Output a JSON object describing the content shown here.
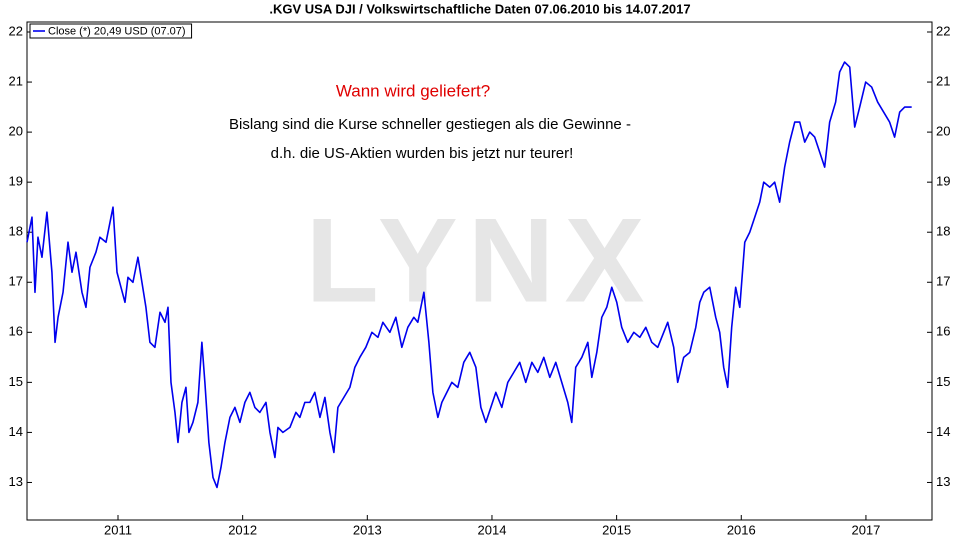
{
  "chart_data": {
    "type": "line",
    "title": ".KGV USA DJI / Volkswirtschaftliche Daten 07.06.2010 bis 14.07.2017",
    "annotations": [
      "Wann wird geliefert?",
      "Bislang sind die Kurse schneller gestiegen als die Gewinne -",
      "d.h. die US-Aktien wurden bis jetzt nur teurer!"
    ],
    "watermark": "LYNX",
    "xlim": [
      2010.27,
      2017.53
    ],
    "xticks": [
      2011,
      2012,
      2013,
      2014,
      2015,
      2016,
      2017
    ],
    "ylim": [
      12.25,
      22.2
    ],
    "yticks": [
      13,
      14,
      15,
      16,
      17,
      18,
      19,
      20,
      21,
      22
    ],
    "grid": false,
    "legend": "top-left",
    "x": [
      2010.27,
      2010.31,
      2010.334,
      2010.358,
      2010.39,
      2010.43,
      2010.47,
      2010.495,
      2010.519,
      2010.559,
      2010.599,
      2010.631,
      2010.663,
      2010.711,
      2010.743,
      2010.775,
      2010.823,
      2010.855,
      2010.904,
      2010.936,
      2010.96,
      2010.992,
      2011.024,
      2011.056,
      2011.08,
      2011.12,
      2011.16,
      2011.192,
      2011.224,
      2011.256,
      2011.296,
      2011.337,
      2011.377,
      2011.401,
      2011.425,
      2011.457,
      2011.481,
      2011.513,
      2011.545,
      2011.569,
      2011.601,
      2011.641,
      2011.673,
      2011.697,
      2011.729,
      2011.762,
      2011.794,
      2011.826,
      2011.858,
      2011.898,
      2011.938,
      2011.978,
      2012.018,
      2012.058,
      2012.098,
      2012.138,
      2012.187,
      2012.219,
      2012.259,
      2012.283,
      2012.323,
      2012.379,
      2012.427,
      2012.459,
      2012.499,
      2012.539,
      2012.579,
      2012.62,
      2012.66,
      2012.7,
      2012.732,
      2012.764,
      2012.812,
      2012.86,
      2012.9,
      2012.94,
      2012.988,
      2013.037,
      2013.085,
      2013.125,
      2013.181,
      2013.229,
      2013.277,
      2013.325,
      2013.373,
      2013.405,
      2013.454,
      2013.494,
      2013.526,
      2013.566,
      2013.598,
      2013.638,
      2013.678,
      2013.726,
      2013.774,
      2013.822,
      2013.871,
      2013.911,
      2013.951,
      2013.991,
      2014.031,
      2014.079,
      2014.127,
      2014.175,
      2014.223,
      2014.271,
      2014.32,
      2014.368,
      2014.416,
      2014.464,
      2014.512,
      2014.56,
      2014.608,
      2014.64,
      2014.672,
      2014.721,
      2014.769,
      2014.801,
      2014.841,
      2014.881,
      2014.921,
      2014.961,
      2015.001,
      2015.041,
      2015.089,
      2015.138,
      2015.186,
      2015.234,
      2015.282,
      2015.33,
      2015.378,
      2015.41,
      2015.458,
      2015.49,
      2015.538,
      2015.587,
      2015.635,
      2015.667,
      2015.699,
      2015.747,
      2015.795,
      2015.827,
      2015.859,
      2015.891,
      2015.923,
      2015.955,
      2015.988,
      2016.028,
      2016.068,
      2016.108,
      2016.148,
      2016.18,
      2016.228,
      2016.268,
      2016.308,
      2016.348,
      2016.388,
      2016.429,
      2016.469,
      2016.509,
      2016.549,
      2016.589,
      2016.629,
      2016.669,
      2016.709,
      2016.757,
      2016.789,
      2016.829,
      2016.87,
      2016.91,
      2016.95,
      2016.998,
      2017.046,
      2017.094,
      2017.142,
      2017.19,
      2017.23,
      2017.271,
      2017.311,
      2017.367
    ],
    "series": [
      {
        "name": "Close (*) 20,49 USD (07.07)",
        "color": "#0000ee",
        "values": [
          17.8,
          18.3,
          16.8,
          17.9,
          17.5,
          18.4,
          17.2,
          15.8,
          16.3,
          16.8,
          17.8,
          17.2,
          17.6,
          16.8,
          16.5,
          17.3,
          17.6,
          17.9,
          17.8,
          18.2,
          18.5,
          17.2,
          16.9,
          16.6,
          17.1,
          17.0,
          17.5,
          17.0,
          16.5,
          15.8,
          15.7,
          16.4,
          16.2,
          16.5,
          15.0,
          14.4,
          13.8,
          14.6,
          14.9,
          14.0,
          14.2,
          14.6,
          15.8,
          15.0,
          13.8,
          13.1,
          12.9,
          13.3,
          13.8,
          14.3,
          14.5,
          14.2,
          14.6,
          14.8,
          14.5,
          14.4,
          14.6,
          14.0,
          13.5,
          14.1,
          14.0,
          14.1,
          14.4,
          14.3,
          14.6,
          14.6,
          14.8,
          14.3,
          14.7,
          14.0,
          13.6,
          14.5,
          14.7,
          14.9,
          15.3,
          15.5,
          15.7,
          16.0,
          15.9,
          16.2,
          16.0,
          16.3,
          15.7,
          16.1,
          16.3,
          16.2,
          16.8,
          15.8,
          14.8,
          14.3,
          14.6,
          14.8,
          15.0,
          14.9,
          15.4,
          15.6,
          15.3,
          14.5,
          14.2,
          14.5,
          14.8,
          14.5,
          15.0,
          15.2,
          15.4,
          15.0,
          15.4,
          15.2,
          15.5,
          15.1,
          15.4,
          15.0,
          14.6,
          14.2,
          15.3,
          15.5,
          15.8,
          15.1,
          15.6,
          16.3,
          16.5,
          16.9,
          16.6,
          16.1,
          15.8,
          16.0,
          15.9,
          16.1,
          15.8,
          15.7,
          16.0,
          16.2,
          15.7,
          15.0,
          15.5,
          15.6,
          16.1,
          16.6,
          16.8,
          16.9,
          16.3,
          16.0,
          15.3,
          14.9,
          16.1,
          16.9,
          16.5,
          17.8,
          18.0,
          18.3,
          18.6,
          19.0,
          18.9,
          19.0,
          18.6,
          19.3,
          19.8,
          20.2,
          20.2,
          19.8,
          20.0,
          19.9,
          19.6,
          19.3,
          20.2,
          20.6,
          21.2,
          21.4,
          21.3,
          20.1,
          20.5,
          21.0,
          20.9,
          20.6,
          20.4,
          20.2,
          19.9,
          20.4,
          20.5,
          20.5
        ]
      }
    ]
  }
}
